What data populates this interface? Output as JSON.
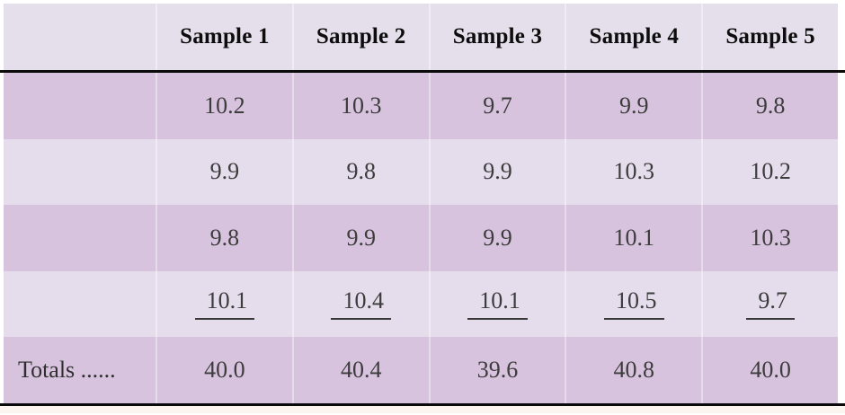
{
  "table": {
    "columns": [
      "",
      "Sample 1",
      "Sample 2",
      "Sample 3",
      "Sample 4",
      "Sample 5"
    ],
    "rows": [
      {
        "label": "",
        "values": [
          "10.2",
          "10.3",
          "9.7",
          "9.9",
          "9.8"
        ],
        "underline": false,
        "shade": "dark"
      },
      {
        "label": "",
        "values": [
          "9.9",
          "9.8",
          "9.9",
          "10.3",
          "10.2"
        ],
        "underline": false,
        "shade": "light"
      },
      {
        "label": "",
        "values": [
          "9.8",
          "9.9",
          "9.9",
          "10.1",
          "10.3"
        ],
        "underline": false,
        "shade": "dark"
      },
      {
        "label": "",
        "values": [
          "10.1",
          "10.4",
          "10.1",
          "10.5",
          "9.7"
        ],
        "underline": true,
        "shade": "light"
      },
      {
        "label": "Totals ......",
        "values": [
          "40.0",
          "40.4",
          "39.6",
          "40.8",
          "40.0"
        ],
        "underline": false,
        "shade": "dark"
      }
    ],
    "colors": {
      "header_bg": "#e4dfeb",
      "row_light": "#e5dcec",
      "row_dark": "#d8c3de",
      "rule": "#0a0a0a",
      "text": "#3c3c3c",
      "header_text": "#0d0d0d",
      "footer_strip": "#fcf4ee"
    }
  }
}
